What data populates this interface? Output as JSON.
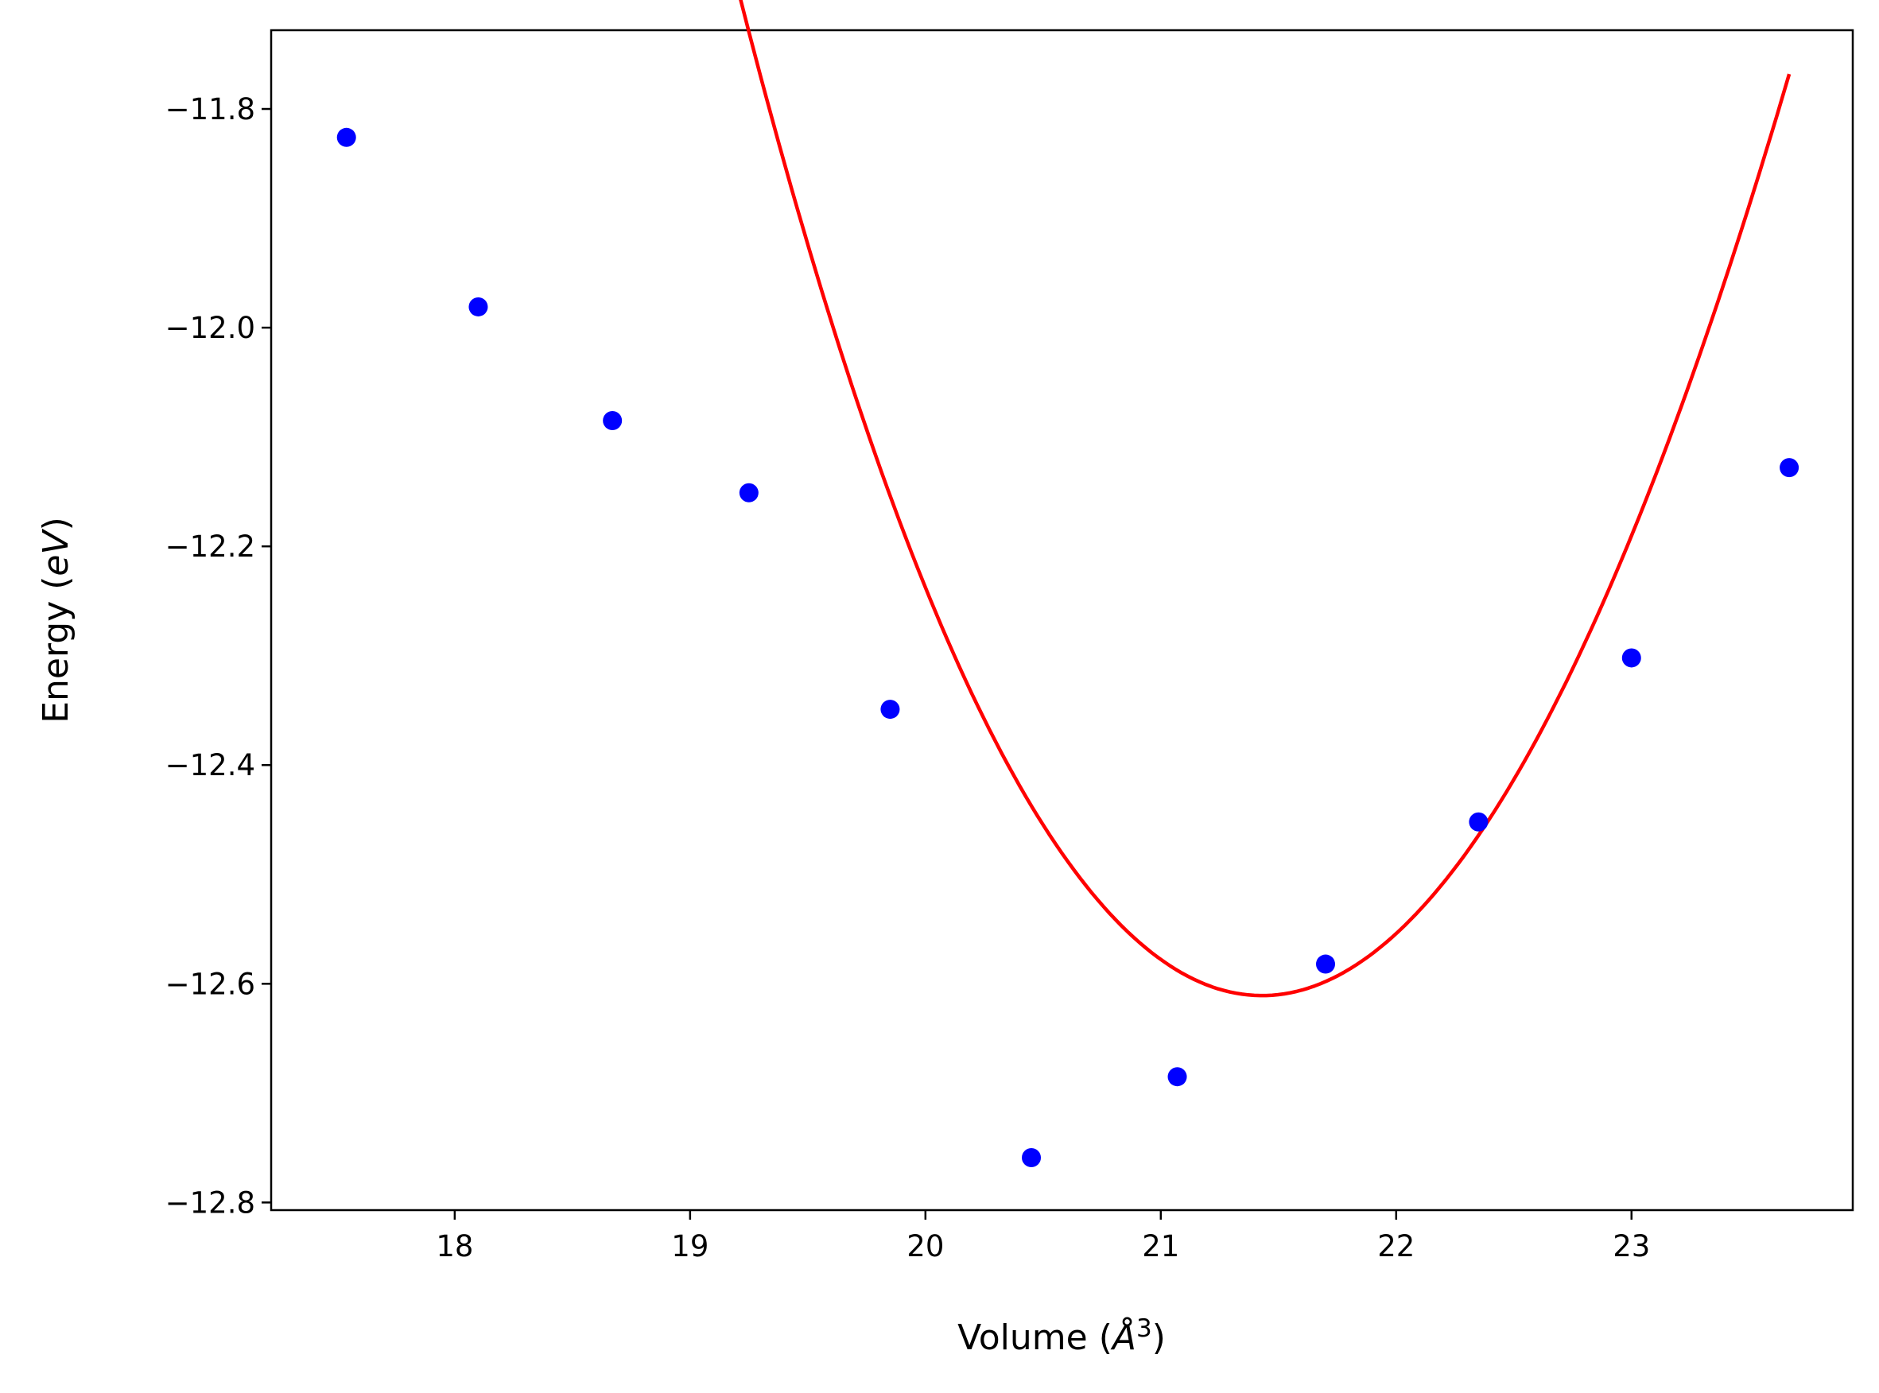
{
  "chart_data": {
    "type": "scatter",
    "title": "",
    "xlabel": {
      "prefix": "Volume (",
      "symbol": "Å",
      "power": "3",
      "suffix": ")"
    },
    "ylabel": {
      "prefix": "Energy (",
      "unit": "eV",
      "suffix": ")"
    },
    "xlim": [
      17.22,
      23.94
    ],
    "ylim": [
      -12.807,
      -11.728
    ],
    "grid": false,
    "legend": "none",
    "x_ticks": [
      18,
      19,
      20,
      21,
      22,
      23
    ],
    "x_tick_labels": [
      "18",
      "19",
      "20",
      "21",
      "22",
      "23"
    ],
    "y_ticks": [
      -11.8,
      -12.0,
      -12.2,
      -12.4,
      -12.6,
      -12.8
    ],
    "y_tick_labels": [
      "−11.8",
      "−12.0",
      "−12.2",
      "−12.4",
      "−12.6",
      "−12.8"
    ],
    "series": [
      {
        "type": "scatter",
        "color": "#0000ff",
        "x": [
          17.54,
          18.1,
          18.67,
          19.25,
          19.85,
          20.45,
          21.07,
          21.7,
          22.35,
          23.0,
          23.67
        ],
        "y": [
          -11.826,
          -11.981,
          -12.085,
          -12.151,
          -12.349,
          -12.759,
          -12.685,
          -12.582,
          -12.452,
          -12.302,
          -12.128
        ]
      },
      {
        "type": "line",
        "color": "#ff0000",
        "fit": "cubic",
        "coefficients": [
          -12.6108,
          0.0,
          0.1768,
          -0.00395
        ],
        "x0": 21.43,
        "x_range": [
          17.54,
          23.67
        ]
      }
    ],
    "colors": {
      "axes": "#000000",
      "points": "#0000ff",
      "fit_line": "#ff0000"
    }
  }
}
